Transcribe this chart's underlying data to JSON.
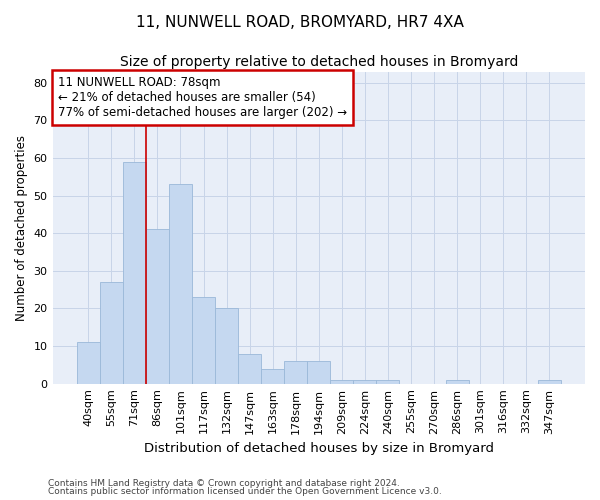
{
  "title": "11, NUNWELL ROAD, BROMYARD, HR7 4XA",
  "subtitle": "Size of property relative to detached houses in Bromyard",
  "xlabel": "Distribution of detached houses by size in Bromyard",
  "ylabel": "Number of detached properties",
  "categories": [
    "40sqm",
    "55sqm",
    "71sqm",
    "86sqm",
    "101sqm",
    "117sqm",
    "132sqm",
    "147sqm",
    "163sqm",
    "178sqm",
    "194sqm",
    "209sqm",
    "224sqm",
    "240sqm",
    "255sqm",
    "270sqm",
    "286sqm",
    "301sqm",
    "316sqm",
    "332sqm",
    "347sqm"
  ],
  "values": [
    11,
    27,
    59,
    41,
    53,
    23,
    20,
    8,
    4,
    6,
    6,
    1,
    1,
    1,
    0,
    0,
    1,
    0,
    0,
    0,
    1
  ],
  "bar_color": "#c5d8f0",
  "bar_edge_color": "#9ab8d8",
  "vline_x": 2.5,
  "vline_color": "#cc0000",
  "annotation_line1": "11 NUNWELL ROAD: 78sqm",
  "annotation_line2": "← 21% of detached houses are smaller (54)",
  "annotation_line3": "77% of semi-detached houses are larger (202) →",
  "annotation_box_edge_color": "#cc0000",
  "ylim": [
    0,
    83
  ],
  "yticks": [
    0,
    10,
    20,
    30,
    40,
    50,
    60,
    70,
    80
  ],
  "grid_color": "#c8d4e8",
  "plot_bg_color": "#e8eef8",
  "footer_line1": "Contains HM Land Registry data © Crown copyright and database right 2024.",
  "footer_line2": "Contains public sector information licensed under the Open Government Licence v3.0.",
  "title_fontsize": 11,
  "subtitle_fontsize": 10,
  "xlabel_fontsize": 9.5,
  "ylabel_fontsize": 8.5,
  "tick_fontsize": 8,
  "annotation_fontsize": 8.5,
  "footer_fontsize": 6.5
}
